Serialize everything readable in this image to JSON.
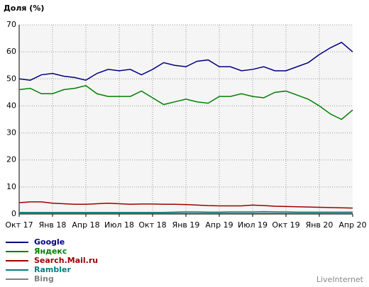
{
  "chart_data": {
    "type": "line",
    "title": "Доля (%)",
    "watermark": "LiveInternet",
    "categories": [
      "Окт 17",
      null,
      null,
      "Янв 18",
      null,
      null,
      "Апр 18",
      null,
      null,
      "Июл 18",
      null,
      null,
      "Окт 18",
      null,
      null,
      "Янв 19",
      null,
      null,
      "Апр 19",
      null,
      null,
      "Июл 19",
      null,
      null,
      "Окт 19",
      null,
      null,
      "Янв 20",
      null,
      null,
      "Апр 20"
    ],
    "ylim": [
      0,
      70
    ],
    "yticks": [
      0,
      10,
      20,
      30,
      40,
      50,
      60,
      70
    ],
    "grid": true,
    "series": [
      {
        "name": "Google",
        "color": "#000080",
        "values": [
          50,
          49.5,
          51.5,
          52,
          51,
          50.5,
          49.5,
          52,
          53.5,
          53,
          53.5,
          51.5,
          53.5,
          56,
          55,
          54.5,
          56.5,
          57,
          54.5,
          54.5,
          53,
          53.5,
          54.5,
          53,
          53,
          54.5,
          56,
          59,
          61.5,
          63.5,
          60
        ]
      },
      {
        "name": "Яндекс",
        "color": "#008000",
        "values": [
          46,
          46.5,
          44.5,
          44.5,
          46,
          46.5,
          47.5,
          44.5,
          43.5,
          43.5,
          43.5,
          45.5,
          43,
          40.5,
          41.5,
          42.5,
          41.5,
          41,
          43.5,
          43.5,
          44.5,
          43.5,
          43,
          45,
          45.5,
          44,
          42.5,
          40,
          37,
          35,
          38.5
        ]
      },
      {
        "name": "Search.Mail.ru",
        "color": "#a00000",
        "values": [
          4.2,
          4.5,
          4.5,
          4,
          3.8,
          3.6,
          3.6,
          3.8,
          4,
          3.8,
          3.6,
          3.7,
          3.7,
          3.6,
          3.6,
          3.5,
          3.3,
          3.1,
          3,
          3,
          3,
          3.3,
          3.1,
          2.9,
          2.8,
          2.7,
          2.6,
          2.5,
          2.4,
          2.3,
          2.2
        ]
      },
      {
        "name": "Rambler",
        "color": "#008080",
        "values": [
          0.6,
          0.6,
          0.6,
          0.6,
          0.6,
          0.6,
          0.6,
          0.6,
          0.6,
          0.6,
          0.6,
          0.6,
          0.6,
          0.6,
          0.7,
          0.8,
          0.8,
          0.7,
          0.7,
          0.8,
          0.8,
          0.8,
          0.9,
          0.8,
          0.8,
          0.7,
          0.7,
          0.7,
          0.7,
          0.7,
          0.7
        ]
      },
      {
        "name": "Bing",
        "color": "#808080",
        "values": [
          0.3,
          0.3,
          0.3,
          0.3,
          0.3,
          0.3,
          0.3,
          0.3,
          0.3,
          0.3,
          0.3,
          0.3,
          0.3,
          0.3,
          0.3,
          0.3,
          0.3,
          0.3,
          0.3,
          0.3,
          0.3,
          0.3,
          0.3,
          0.3,
          0.3,
          0.3,
          0.3,
          0.3,
          0.3,
          0.3,
          0.3
        ]
      }
    ]
  }
}
